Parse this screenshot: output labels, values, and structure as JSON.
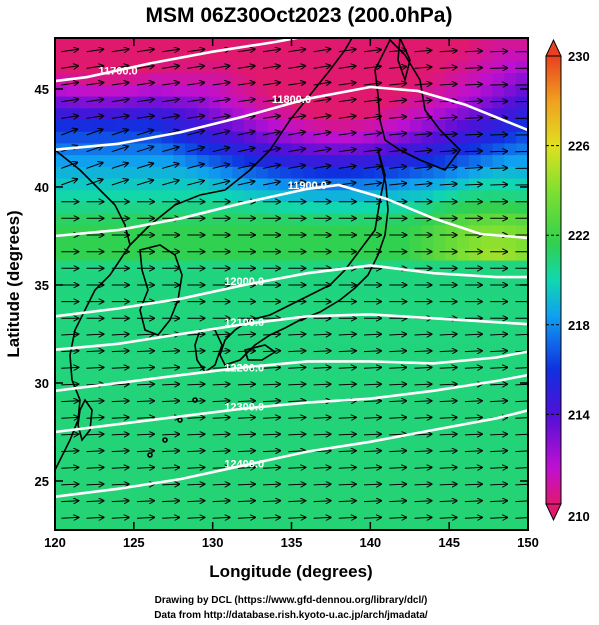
{
  "title": "MSM 06Z30Oct2023 (200.0hPa)",
  "map": {
    "x_axis_label": "Longitude (degrees)",
    "y_axis_label": "Latitude  (degrees)",
    "lon_range": [
      120,
      150
    ],
    "lat_range": [
      22.5,
      47.6
    ],
    "lon_ticks": [
      "120",
      "125",
      "130",
      "135",
      "140",
      "145",
      "150"
    ],
    "lat_ticks": [
      "25",
      "30",
      "35",
      "40",
      "45"
    ],
    "shaded_field_colorbar": {
      "range": [
        210,
        230
      ],
      "labels": [
        "230",
        "226",
        "222",
        "218",
        "214",
        "210"
      ],
      "colors": [
        "#e0186e",
        "#c010d0",
        "#5010d8",
        "#1030e0",
        "#10a0f0",
        "#10d8b0",
        "#30d050",
        "#80e030",
        "#e0e020",
        "#f0a020",
        "#e84020"
      ]
    },
    "contour_labels": [
      "11700.0",
      "11800.0",
      "11900.0",
      "12000.0",
      "12100.0",
      "12200.0",
      "12300.0",
      "12400.0"
    ],
    "contour_color": "#ffffff",
    "wind_vector_color": "#000000",
    "coastline_color": "#000000"
  },
  "credits": [
    "Drawing by DCL (https://www.gfd-dennou.org/library/dcl/)",
    "Data from http://database.rish.kyoto-u.ac.jp/arch/jmadata/"
  ]
}
